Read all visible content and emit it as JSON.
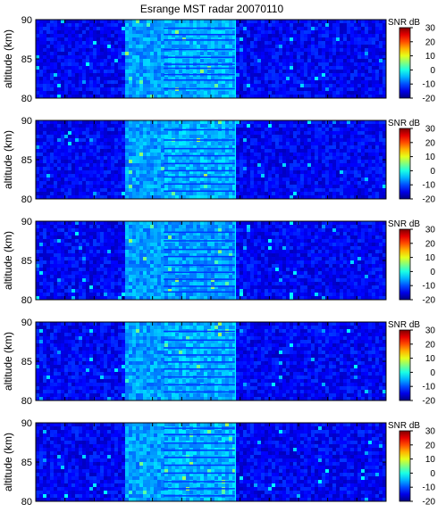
{
  "title": "Esrange MST radar 20070110",
  "colorbar": {
    "label": "SNR dB",
    "ticks": [
      30,
      20,
      10,
      0,
      -10,
      -20
    ],
    "range": [
      -20,
      30
    ],
    "colormap": "jet"
  },
  "chart_data": [
    {
      "type": "heatmap",
      "panel": 1,
      "ylabel": "altitude (km)",
      "ylim": [
        80,
        90
      ],
      "yticks": [
        80,
        85,
        90
      ],
      "xticks_labeled": false,
      "z_units": "SNR dB",
      "zlim": [
        -20,
        30
      ],
      "time_bands": [
        {
          "from": 0.0,
          "to": 0.25,
          "snr_db": -14
        },
        {
          "from": 0.25,
          "to": 0.365,
          "snr_db": -6
        },
        {
          "from": 0.365,
          "to": 0.57,
          "snr_db": -5
        },
        {
          "from": 0.57,
          "to": 1.0,
          "snr_db": -14
        }
      ],
      "layers_km": [
        81.2,
        82.3,
        83.0,
        83.8,
        84.3,
        85.2,
        86.2,
        87.4,
        88.1,
        88.9
      ]
    },
    {
      "type": "heatmap",
      "panel": 2,
      "ylabel": "altitude (km)",
      "ylim": [
        80,
        90
      ],
      "yticks": [
        80,
        85,
        90
      ],
      "xticks_labeled": false,
      "z_units": "SNR dB",
      "zlim": [
        -20,
        30
      ],
      "time_bands": [
        {
          "from": 0.0,
          "to": 0.25,
          "snr_db": -14
        },
        {
          "from": 0.25,
          "to": 0.365,
          "snr_db": -6
        },
        {
          "from": 0.365,
          "to": 0.57,
          "snr_db": -5
        },
        {
          "from": 0.57,
          "to": 1.0,
          "snr_db": -14
        }
      ],
      "layers_km": [
        81.0,
        81.9,
        82.8,
        83.6,
        84.5,
        85.5,
        86.4,
        87.5,
        88.8
      ]
    },
    {
      "type": "heatmap",
      "panel": 3,
      "ylabel": "altitude (km)",
      "ylim": [
        80,
        90
      ],
      "yticks": [
        80,
        85,
        90
      ],
      "xticks_labeled": false,
      "z_units": "SNR dB",
      "zlim": [
        -20,
        30
      ],
      "time_bands": [
        {
          "from": 0.0,
          "to": 0.25,
          "snr_db": -14
        },
        {
          "from": 0.25,
          "to": 0.365,
          "snr_db": -6
        },
        {
          "from": 0.365,
          "to": 0.57,
          "snr_db": -6
        },
        {
          "from": 0.57,
          "to": 1.0,
          "snr_db": -14
        }
      ],
      "layers_km": [
        81.0,
        81.7,
        82.6,
        83.5,
        84.4,
        85.5,
        86.4,
        87.5,
        88.6
      ]
    },
    {
      "type": "heatmap",
      "panel": 4,
      "ylabel": "altitude (km)",
      "ylim": [
        80,
        90
      ],
      "yticks": [
        80,
        85,
        90
      ],
      "xticks_labeled": false,
      "z_units": "SNR dB",
      "zlim": [
        -20,
        30
      ],
      "time_bands": [
        {
          "from": 0.0,
          "to": 0.25,
          "snr_db": -14
        },
        {
          "from": 0.25,
          "to": 0.365,
          "snr_db": -6
        },
        {
          "from": 0.365,
          "to": 0.57,
          "snr_db": -5
        },
        {
          "from": 0.57,
          "to": 1.0,
          "snr_db": -14
        }
      ],
      "layers_km": [
        81.1,
        82.0,
        83.0,
        84.0,
        84.9,
        85.8,
        86.7,
        87.7,
        88.8
      ]
    },
    {
      "type": "heatmap",
      "panel": 5,
      "ylabel": "altitude (km)",
      "ylim": [
        80,
        90
      ],
      "yticks": [
        80,
        85,
        90
      ],
      "xticks_labeled": false,
      "z_units": "SNR dB",
      "zlim": [
        -20,
        30
      ],
      "time_bands": [
        {
          "from": 0.0,
          "to": 0.25,
          "snr_db": -14
        },
        {
          "from": 0.25,
          "to": 0.365,
          "snr_db": -6
        },
        {
          "from": 0.365,
          "to": 0.57,
          "snr_db": -5
        },
        {
          "from": 0.57,
          "to": 1.0,
          "snr_db": -14
        }
      ],
      "layers_km": [
        80.7,
        81.6,
        82.5,
        83.6,
        84.6,
        85.6,
        86.5,
        87.4,
        88.5,
        89.3
      ]
    }
  ]
}
